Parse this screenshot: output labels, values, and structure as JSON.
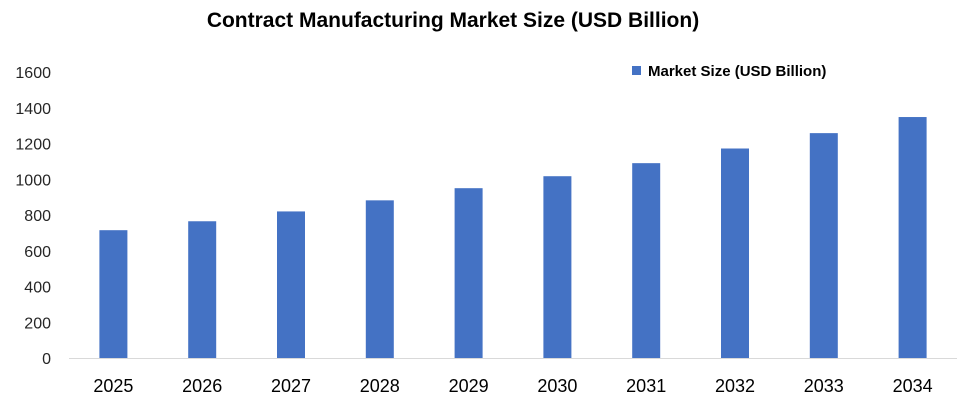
{
  "chart_data": {
    "type": "bar",
    "title": "Contract Manufacturing Market Size (USD Billion)",
    "xlabel": "",
    "ylabel": "",
    "categories": [
      "2025",
      "2026",
      "2027",
      "2028",
      "2029",
      "2030",
      "2031",
      "2032",
      "2033",
      "2034"
    ],
    "series": [
      {
        "name": "Market Size (USD Billion)",
        "values": [
          715,
          765,
          820,
          882,
          950,
          1017,
          1090,
          1172,
          1258,
          1348
        ],
        "color": "#4472C4"
      }
    ],
    "ylim": [
      0,
      1600
    ],
    "yticks": [
      "0",
      "200",
      "400",
      "600",
      "800",
      "1000",
      "1200",
      "1400",
      "1600"
    ],
    "grid": false,
    "legend_position": "top-right"
  }
}
